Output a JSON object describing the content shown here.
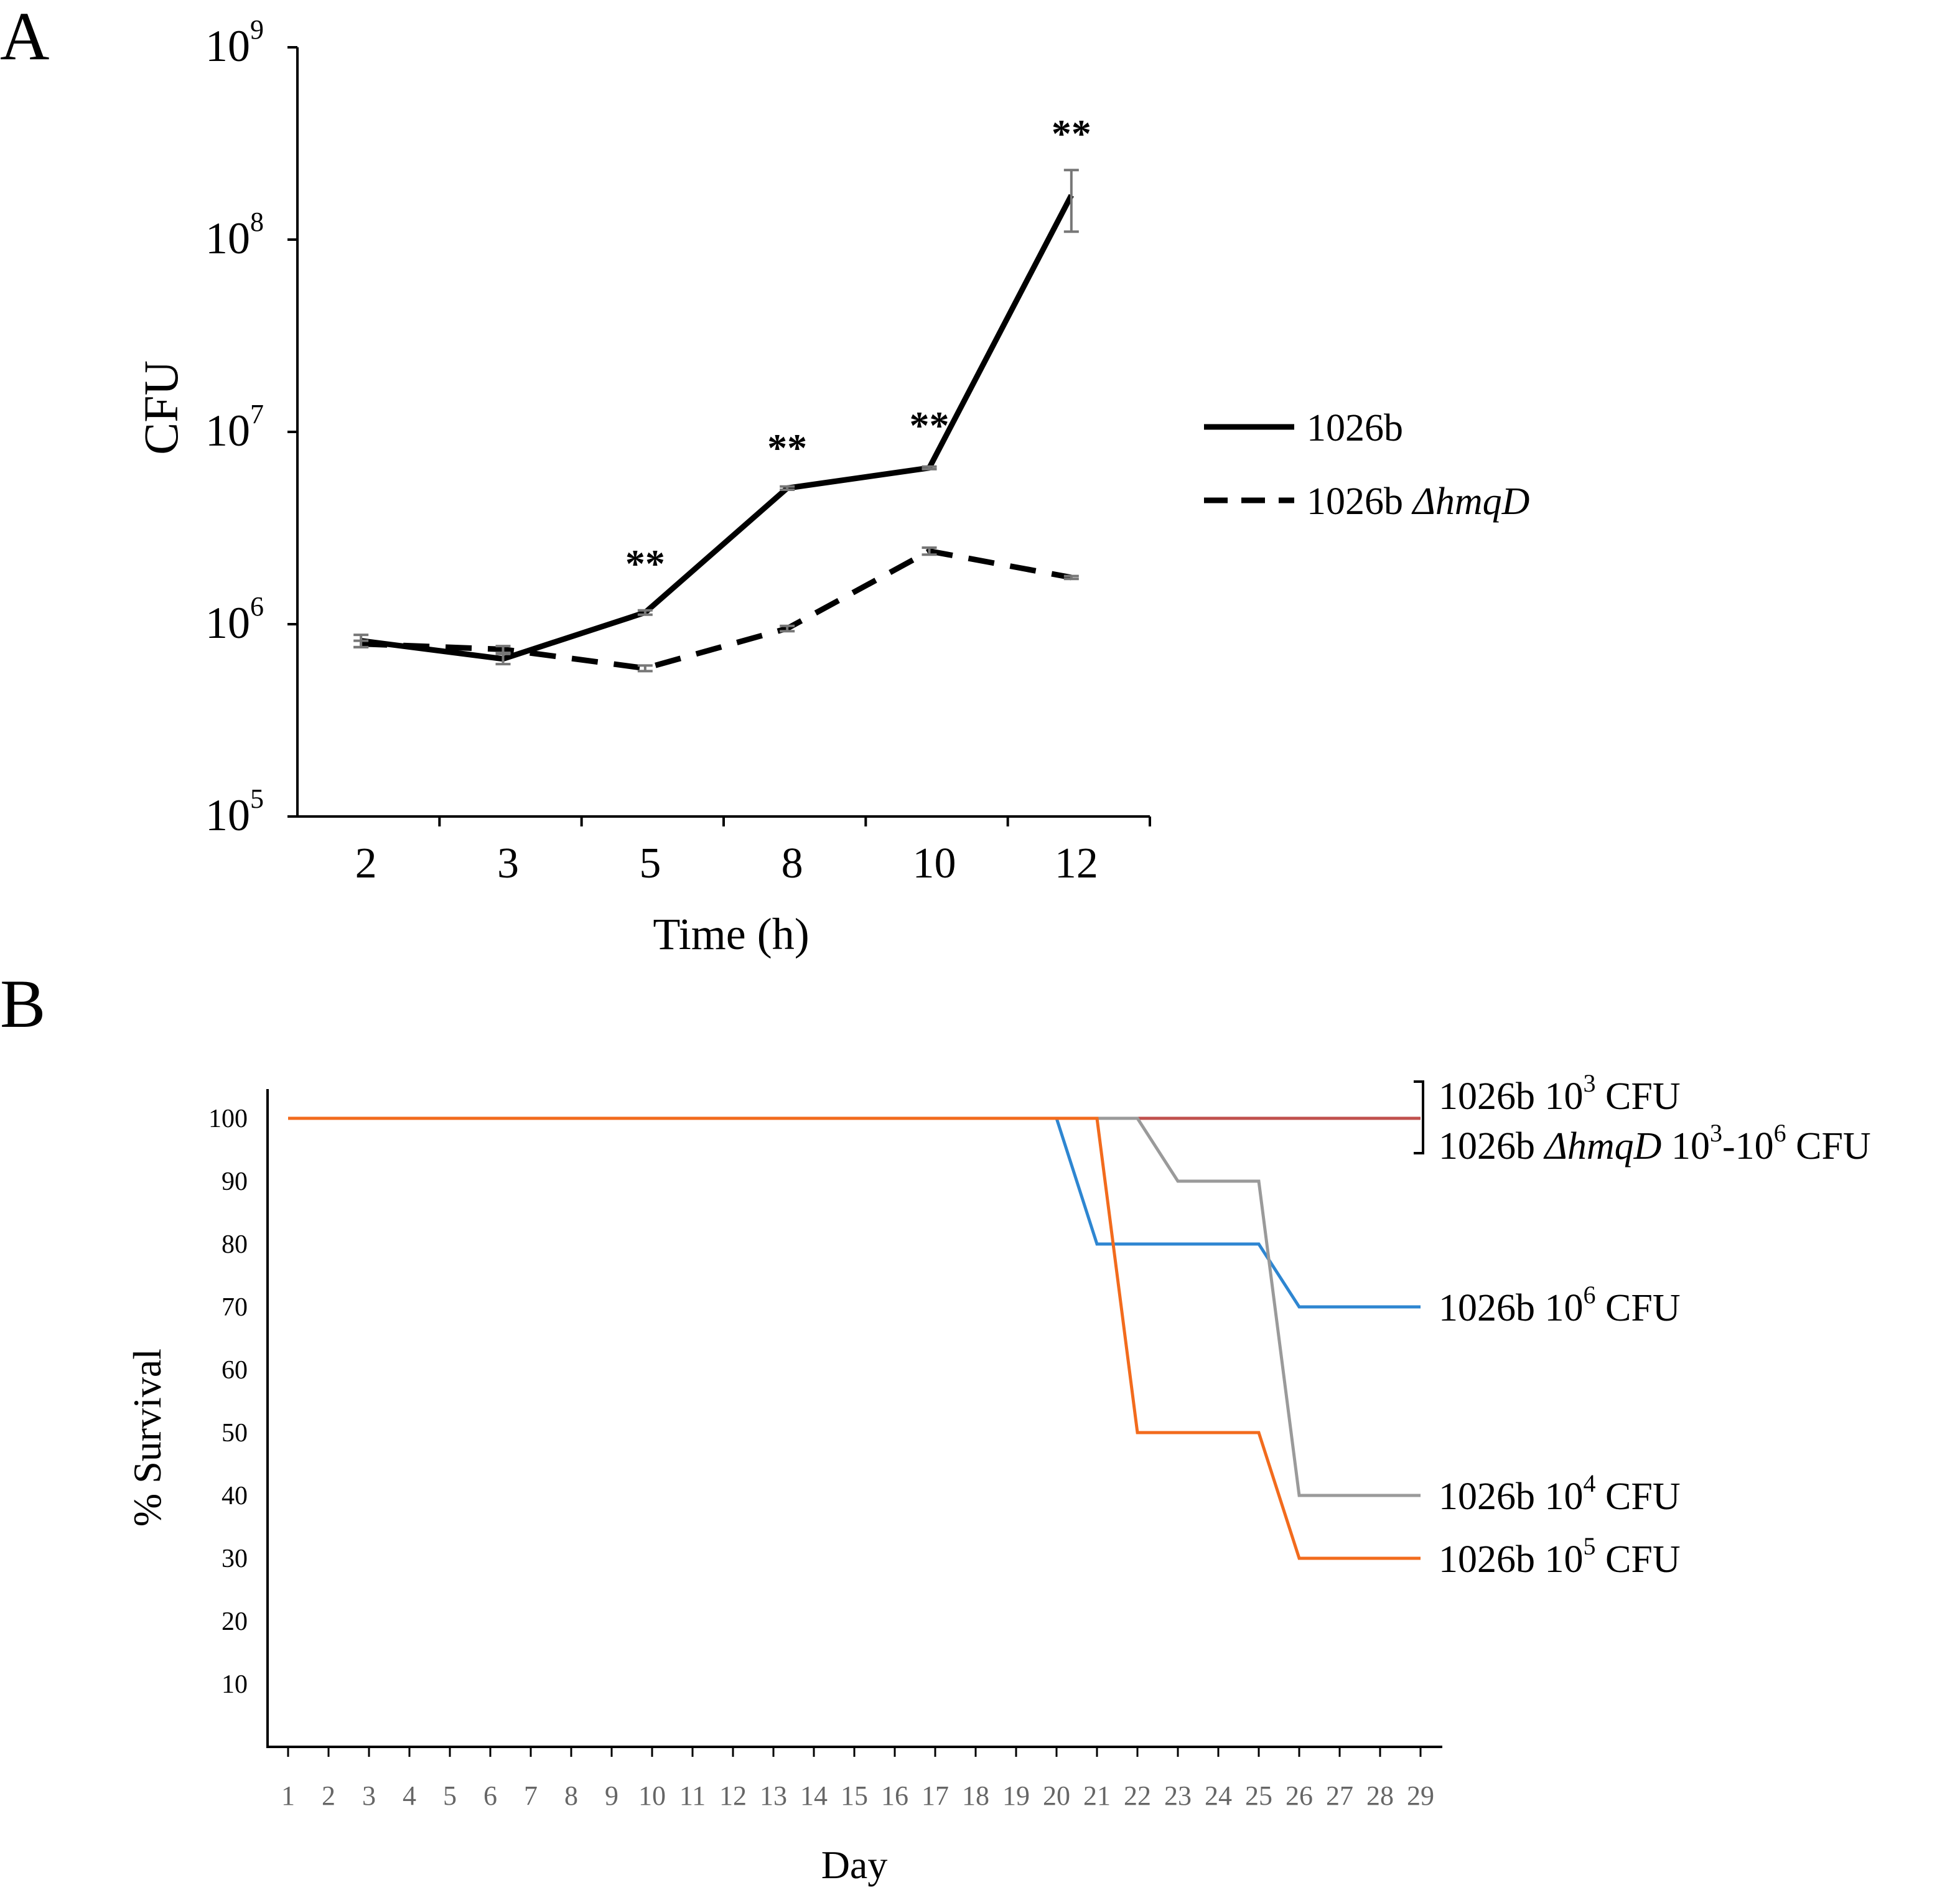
{
  "panels": {
    "a": {
      "label": "A"
    },
    "b": {
      "label": "B"
    }
  },
  "chart_data": [
    {
      "type": "line",
      "panel": "A",
      "xlabel": "Time (h)",
      "ylabel": "CFU",
      "yscale": "log",
      "ylim": [
        100000,
        1000000000
      ],
      "categories": [
        "2",
        "3",
        "5",
        "8",
        "10",
        "12"
      ],
      "y_ticks": [
        {
          "base": "10",
          "exp": "5",
          "value": 100000
        },
        {
          "base": "10",
          "exp": "6",
          "value": 1000000
        },
        {
          "base": "10",
          "exp": "7",
          "value": 10000000
        },
        {
          "base": "10",
          "exp": "8",
          "value": 100000000
        },
        {
          "base": "10",
          "exp": "9",
          "value": 1000000000
        }
      ],
      "series": [
        {
          "name": "1026b",
          "name_italic": "",
          "style": "solid",
          "color": "#000000",
          "values": [
            820000,
            660000,
            1150000,
            5100000,
            6500000,
            170000000
          ],
          "errors": [
            [
              760000,
              880000
            ],
            [
              620000,
              700000
            ],
            [
              1120000,
              1180000
            ],
            [
              5000000,
              5200000
            ],
            [
              6400000,
              6600000
            ],
            [
              110000000,
              230000000
            ]
          ]
        },
        {
          "name": "1026b ",
          "name_italic": "ΔhmqD",
          "style": "dashed",
          "color": "#000000",
          "values": [
            790000,
            740000,
            590000,
            950000,
            2400000,
            1750000
          ],
          "errors": [
            [
              760000,
              820000
            ],
            [
              710000,
              770000
            ],
            [
              570000,
              610000
            ],
            [
              920000,
              980000
            ],
            [
              2300000,
              2500000
            ],
            [
              1720000,
              1780000
            ]
          ]
        }
      ],
      "annotations": [
        {
          "category": "5",
          "text": "**",
          "at_value": 2200000
        },
        {
          "category": "8",
          "text": "**",
          "at_value": 8800000
        },
        {
          "category": "10",
          "text": "**",
          "at_value": 11500000
        },
        {
          "category": "12",
          "text": "**",
          "at_value": 380000000
        }
      ]
    },
    {
      "type": "line",
      "panel": "B",
      "xlabel": "Day",
      "ylabel": "% Survival",
      "ylim": [
        0,
        100
      ],
      "xlim": [
        1,
        29
      ],
      "x_ticks": [
        "1",
        "2",
        "3",
        "4",
        "5",
        "6",
        "7",
        "8",
        "9",
        "10",
        "11",
        "12",
        "13",
        "14",
        "15",
        "16",
        "17",
        "18",
        "19",
        "20",
        "21",
        "22",
        "23",
        "24",
        "25",
        "26",
        "27",
        "28",
        "29"
      ],
      "y_ticks": [
        "10",
        "20",
        "30",
        "40",
        "50",
        "60",
        "70",
        "80",
        "90",
        "100"
      ],
      "series": [
        {
          "name": "1026b 10^3 CFU / 1026b ΔhmqD 10^3-10^6 CFU",
          "color": "#C0504D",
          "points": [
            [
              1,
              100
            ],
            [
              29,
              100
            ]
          ]
        },
        {
          "name": "1026b 10^6 CFU",
          "color": "#2E86D1",
          "points": [
            [
              1,
              100
            ],
            [
              20,
              100
            ],
            [
              21,
              80
            ],
            [
              25,
              80
            ],
            [
              26,
              70
            ],
            [
              29,
              70
            ]
          ]
        },
        {
          "name": "1026b 10^4 CFU",
          "color": "#9A9A9A",
          "points": [
            [
              1,
              100
            ],
            [
              22,
              100
            ],
            [
              23,
              90
            ],
            [
              25,
              90
            ],
            [
              26,
              40
            ],
            [
              29,
              40
            ]
          ]
        },
        {
          "name": "1026b 10^5 CFU",
          "color": "#F26B1D",
          "points": [
            [
              1,
              100
            ],
            [
              21,
              100
            ],
            [
              22,
              50
            ],
            [
              25,
              50
            ],
            [
              26,
              30
            ],
            [
              29,
              30
            ]
          ]
        }
      ],
      "labels": {
        "top_line1": {
          "prefix": "1026b 10",
          "sup": "3",
          "suffix": " CFU"
        },
        "top_line2": {
          "prefix": "1026b  ",
          "italic": "ΔhmqD",
          "mid": " 10",
          "sup1": "3",
          "dash": "-10",
          "sup2": "6",
          "suffix": " CFU"
        },
        "s6": {
          "prefix": "1026b 10",
          "sup": "6",
          "suffix": " CFU",
          "at": 70
        },
        "s4": {
          "prefix": "1026b 10",
          "sup": "4",
          "suffix": " CFU",
          "at": 40
        },
        "s5": {
          "prefix": "1026b 10",
          "sup": "5",
          "suffix": " CFU",
          "at": 30
        }
      }
    }
  ]
}
